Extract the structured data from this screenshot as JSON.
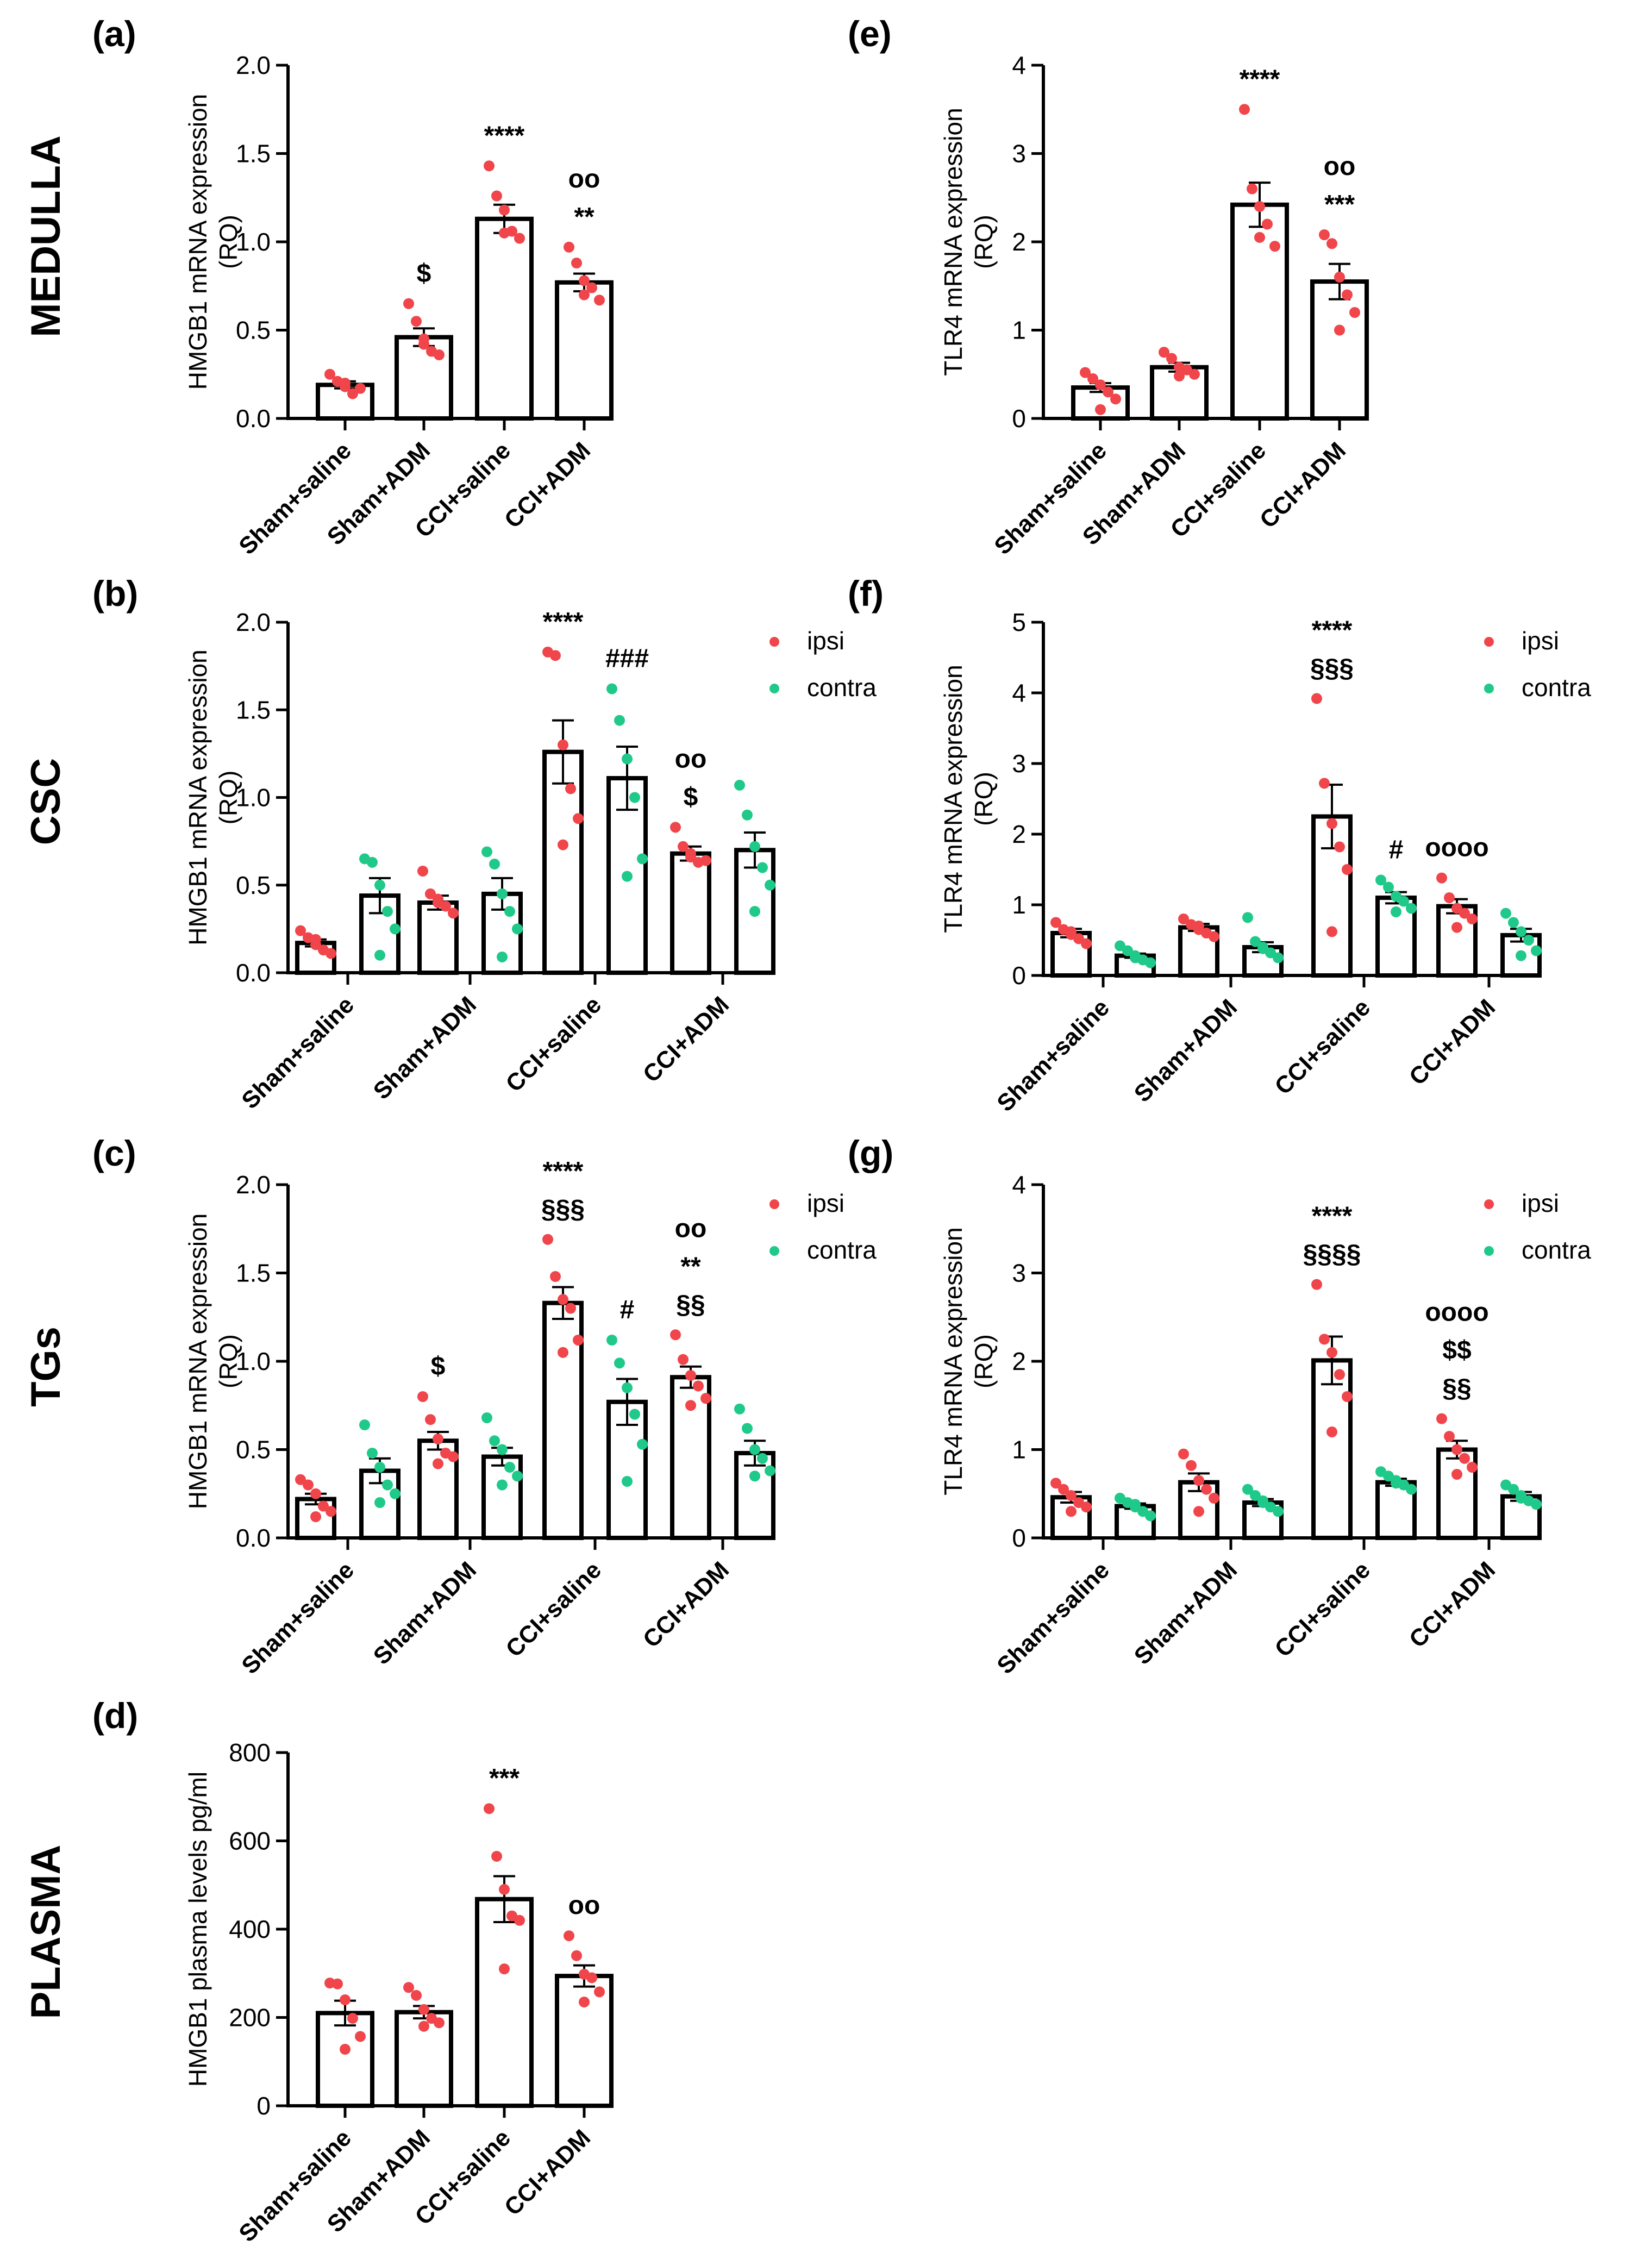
{
  "row_labels": [
    "MEDULLA",
    "CSC",
    "TGs",
    "PLASMA"
  ],
  "groups": [
    "Sham+saline",
    "Sham+ADM",
    "CCI+saline",
    "CCI+ADM"
  ],
  "legend": {
    "ipsi": "ipsi",
    "contra": "contra"
  },
  "colors": {
    "ipsi": "#f0454a",
    "contra": "#1fc98a",
    "bar": "#000000",
    "text": "#000000"
  },
  "chart_data": [
    {
      "id": "a",
      "panel_label": "(a)",
      "type": "bar",
      "ylabel": "HMGB1 mRNA expression (RQ)",
      "ylim": [
        0,
        2.0
      ],
      "yticks": [
        "0.0",
        "0.5",
        "1.0",
        "1.5",
        "2.0"
      ],
      "categories": [
        "Sham+saline",
        "Sham+ADM",
        "CCI+saline",
        "CCI+ADM"
      ],
      "series": [
        {
          "name": "",
          "values": [
            0.19,
            0.46,
            1.13,
            0.77
          ],
          "sem": [
            0.02,
            0.05,
            0.08,
            0.05
          ],
          "points": [
            [
              0.25,
              0.21,
              0.18,
              0.14,
              0.17,
              0.2
            ],
            [
              0.65,
              0.55,
              0.45,
              0.38,
              0.36,
              0.42
            ],
            [
              1.43,
              1.26,
              1.18,
              1.06,
              1.02,
              1.05
            ],
            [
              0.97,
              0.88,
              0.78,
              0.74,
              0.67,
              0.7
            ]
          ],
          "annotations": [
            [],
            [
              "$"
            ],
            [
              "****"
            ],
            [
              "oo",
              "**"
            ]
          ]
        }
      ]
    },
    {
      "id": "b",
      "panel_label": "(b)",
      "type": "bar",
      "ylabel": "HMGB1 mRNA expression (RQ)",
      "ylim": [
        0,
        2.0
      ],
      "yticks": [
        "0.0",
        "0.5",
        "1.0",
        "1.5",
        "2.0"
      ],
      "categories": [
        "Sham+saline",
        "Sham+ADM",
        "CCI+saline",
        "CCI+ADM"
      ],
      "series": [
        {
          "name": "ipsi",
          "values": [
            0.17,
            0.4,
            1.26,
            0.68
          ],
          "sem": [
            0.02,
            0.04,
            0.18,
            0.04
          ],
          "points": [
            [
              0.24,
              0.2,
              0.16,
              0.13,
              0.11,
              0.19
            ],
            [
              0.58,
              0.45,
              0.42,
              0.38,
              0.34,
              0.4
            ],
            [
              1.83,
              1.81,
              1.3,
              1.05,
              0.88,
              0.73
            ],
            [
              0.83,
              0.72,
              0.68,
              0.63,
              0.64,
              0.66
            ]
          ],
          "annotations": [
            [],
            [],
            [
              "****"
            ],
            [
              "oo",
              "$"
            ]
          ]
        },
        {
          "name": "contra",
          "values": [
            0.44,
            0.45,
            1.11,
            0.7
          ],
          "sem": [
            0.1,
            0.09,
            0.18,
            0.1
          ],
          "points": [
            [
              0.65,
              0.63,
              0.5,
              0.35,
              0.25,
              0.1
            ],
            [
              0.69,
              0.62,
              0.45,
              0.35,
              0.25,
              0.09
            ],
            [
              1.62,
              1.44,
              1.22,
              1.0,
              0.65,
              0.55
            ],
            [
              1.07,
              0.9,
              0.72,
              0.6,
              0.5,
              0.35
            ]
          ],
          "annotations": [
            [],
            [],
            [
              "###"
            ],
            []
          ]
        }
      ]
    },
    {
      "id": "c",
      "panel_label": "(c)",
      "type": "bar",
      "ylabel": "HMGB1 mRNA expression (RQ)",
      "ylim": [
        0,
        2.0
      ],
      "yticks": [
        "0.0",
        "0.5",
        "1.0",
        "1.5",
        "2.0"
      ],
      "categories": [
        "Sham+saline",
        "Sham+ADM",
        "CCI+saline",
        "CCI+ADM"
      ],
      "series": [
        {
          "name": "ipsi",
          "values": [
            0.22,
            0.55,
            1.33,
            0.91
          ],
          "sem": [
            0.03,
            0.05,
            0.09,
            0.06
          ],
          "points": [
            [
              0.33,
              0.3,
              0.25,
              0.18,
              0.15,
              0.12
            ],
            [
              0.8,
              0.67,
              0.56,
              0.48,
              0.46,
              0.42
            ],
            [
              1.69,
              1.48,
              1.35,
              1.3,
              1.12,
              1.05
            ],
            [
              1.15,
              1.01,
              0.92,
              0.86,
              0.79,
              0.75
            ]
          ],
          "annotations": [
            [],
            [
              "$"
            ],
            [
              "****",
              "§§§"
            ],
            [
              "oo",
              "**",
              "§§"
            ]
          ]
        },
        {
          "name": "contra",
          "values": [
            0.38,
            0.46,
            0.77,
            0.48
          ],
          "sem": [
            0.07,
            0.05,
            0.13,
            0.07
          ],
          "points": [
            [
              0.64,
              0.48,
              0.4,
              0.3,
              0.25,
              0.2
            ],
            [
              0.68,
              0.55,
              0.5,
              0.4,
              0.35,
              0.3
            ],
            [
              1.12,
              0.99,
              0.85,
              0.7,
              0.53,
              0.32
            ],
            [
              0.73,
              0.62,
              0.5,
              0.45,
              0.38,
              0.35
            ]
          ],
          "annotations": [
            [],
            [],
            [
              "#"
            ],
            []
          ]
        }
      ]
    },
    {
      "id": "d",
      "panel_label": "(d)",
      "type": "bar",
      "ylabel": "HMGB1 plasma levels pg/ml",
      "ylim": [
        0,
        800
      ],
      "yticks": [
        "0",
        "200",
        "400",
        "600",
        "800"
      ],
      "categories": [
        "Sham+saline",
        "Sham+ADM",
        "CCI+saline",
        "CCI+ADM"
      ],
      "series": [
        {
          "name": "",
          "values": [
            210,
            212,
            468,
            294
          ],
          "sem": [
            28,
            14,
            52,
            24
          ],
          "points": [
            [
              278,
              276,
              240,
              198,
              157,
              128
            ],
            [
              268,
              250,
              218,
              198,
              188,
              180
            ],
            [
              673,
              565,
              490,
              430,
              420,
              310
            ],
            [
              385,
              340,
              298,
              290,
              258,
              235
            ]
          ],
          "annotations": [
            [],
            [],
            [
              "***"
            ],
            [
              "oo"
            ]
          ]
        }
      ]
    },
    {
      "id": "e",
      "panel_label": "(e)",
      "type": "bar",
      "ylabel": "TLR4 mRNA expression (RQ)",
      "ylim": [
        0,
        4
      ],
      "yticks": [
        "0",
        "1",
        "2",
        "3",
        "4"
      ],
      "categories": [
        "Sham+saline",
        "Sham+ADM",
        "CCI+saline",
        "CCI+ADM"
      ],
      "series": [
        {
          "name": "",
          "values": [
            0.35,
            0.58,
            2.42,
            1.55
          ],
          "sem": [
            0.05,
            0.05,
            0.25,
            0.2
          ],
          "points": [
            [
              0.52,
              0.45,
              0.38,
              0.3,
              0.22,
              0.1
            ],
            [
              0.75,
              0.68,
              0.58,
              0.55,
              0.5,
              0.48
            ],
            [
              3.5,
              2.6,
              2.4,
              2.2,
              1.95,
              2.05
            ],
            [
              2.08,
              1.98,
              1.6,
              1.4,
              1.2,
              1.0
            ]
          ],
          "annotations": [
            [],
            [],
            [
              "****"
            ],
            [
              "oo",
              "***"
            ]
          ]
        }
      ]
    },
    {
      "id": "f",
      "panel_label": "(f)",
      "type": "bar",
      "ylabel": "TLR4 mRNA expression (RQ)",
      "ylim": [
        0,
        5
      ],
      "yticks": [
        "0",
        "1",
        "2",
        "3",
        "4",
        "5"
      ],
      "categories": [
        "Sham+saline",
        "Sham+ADM",
        "CCI+saline",
        "CCI+ADM"
      ],
      "series": [
        {
          "name": "ipsi",
          "values": [
            0.6,
            0.68,
            2.25,
            0.98
          ],
          "sem": [
            0.06,
            0.05,
            0.45,
            0.1
          ],
          "points": [
            [
              0.75,
              0.65,
              0.58,
              0.52,
              0.45,
              0.62
            ],
            [
              0.8,
              0.72,
              0.65,
              0.6,
              0.55,
              0.7
            ],
            [
              3.92,
              2.72,
              2.15,
              1.82,
              1.5,
              0.62
            ],
            [
              1.38,
              1.1,
              0.95,
              0.88,
              0.8,
              0.68
            ]
          ],
          "annotations": [
            [],
            [],
            [
              "****",
              "§§§"
            ],
            [
              "oooo"
            ]
          ]
        },
        {
          "name": "contra",
          "values": [
            0.28,
            0.4,
            1.1,
            0.57
          ],
          "sem": [
            0.03,
            0.07,
            0.08,
            0.09
          ],
          "points": [
            [
              0.42,
              0.35,
              0.28,
              0.22,
              0.18,
              0.25
            ],
            [
              0.82,
              0.48,
              0.4,
              0.32,
              0.25,
              0.38
            ],
            [
              1.35,
              1.25,
              1.12,
              1.05,
              0.95,
              0.9
            ],
            [
              0.88,
              0.75,
              0.62,
              0.5,
              0.35,
              0.28
            ]
          ],
          "annotations": [
            [],
            [],
            [
              "#"
            ],
            []
          ]
        }
      ]
    },
    {
      "id": "g",
      "panel_label": "(g)",
      "type": "bar",
      "ylabel": "TLR4 mRNA expression (RQ)",
      "ylim": [
        0,
        4
      ],
      "yticks": [
        "0",
        "1",
        "2",
        "3",
        "4"
      ],
      "categories": [
        "Sham+saline",
        "Sham+ADM",
        "CCI+saline",
        "CCI+ADM"
      ],
      "series": [
        {
          "name": "ipsi",
          "values": [
            0.46,
            0.63,
            2.01,
            1.0
          ],
          "sem": [
            0.06,
            0.1,
            0.27,
            0.1
          ],
          "points": [
            [
              0.62,
              0.55,
              0.48,
              0.4,
              0.35,
              0.3
            ],
            [
              0.95,
              0.82,
              0.65,
              0.55,
              0.45,
              0.3
            ],
            [
              2.87,
              2.25,
              2.1,
              1.85,
              1.6,
              1.2
            ],
            [
              1.35,
              1.15,
              1.0,
              0.9,
              0.8,
              0.72
            ]
          ],
          "annotations": [
            [],
            [],
            [
              "****",
              "§§§§"
            ],
            [
              "oooo",
              "$$",
              "§§"
            ]
          ]
        },
        {
          "name": "contra",
          "values": [
            0.36,
            0.4,
            0.63,
            0.47
          ],
          "sem": [
            0.03,
            0.04,
            0.04,
            0.05
          ],
          "points": [
            [
              0.45,
              0.4,
              0.35,
              0.3,
              0.25,
              0.38
            ],
            [
              0.55,
              0.48,
              0.4,
              0.35,
              0.3,
              0.42
            ],
            [
              0.75,
              0.7,
              0.65,
              0.6,
              0.55,
              0.62
            ],
            [
              0.6,
              0.55,
              0.48,
              0.42,
              0.38,
              0.45
            ]
          ],
          "annotations": [
            [],
            [],
            [],
            []
          ]
        }
      ]
    }
  ]
}
